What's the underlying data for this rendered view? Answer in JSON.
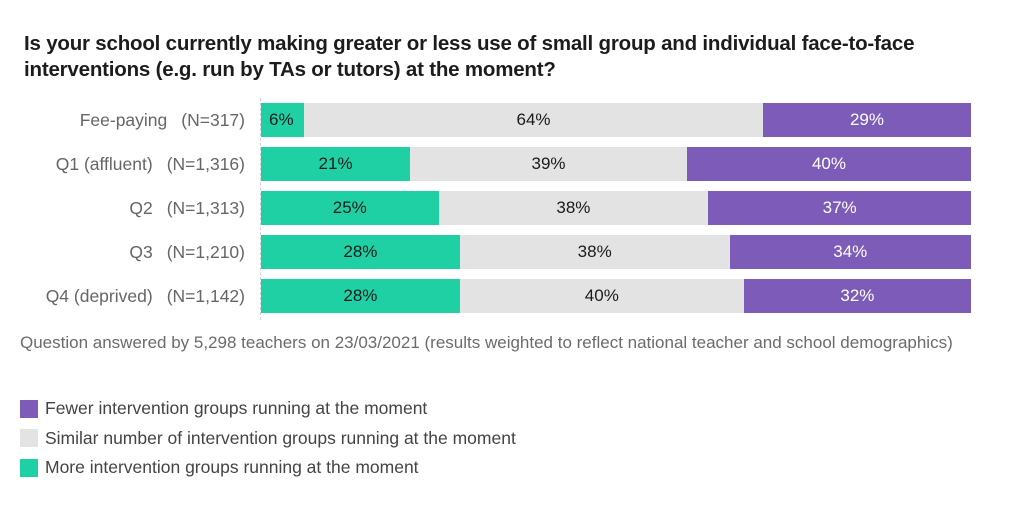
{
  "chart_data": {
    "type": "bar",
    "orientation": "horizontal",
    "stacked": true,
    "title": "Is your school currently making greater or less use of small group and individual face-to-face interventions (e.g. run by TAs or tutors) at the moment?",
    "categories": [
      "Fee-paying",
      "Q1 (affluent)",
      "Q2",
      "Q3",
      "Q4 (deprived)"
    ],
    "sample_sizes": [
      "(N=317)",
      "(N=1,316)",
      "(N=1,313)",
      "(N=1,210)",
      "(N=1,142)"
    ],
    "series": [
      {
        "name": "More intervention groups running at the moment",
        "key": "more",
        "color": "#20d0a5",
        "values": [
          6,
          21,
          25,
          28,
          28
        ]
      },
      {
        "name": "Similar number of intervention groups running at the moment",
        "key": "similar",
        "color": "#e3e3e3",
        "values": [
          64,
          39,
          38,
          38,
          40
        ]
      },
      {
        "name": "Fewer intervention groups running at the moment",
        "key": "fewer",
        "color": "#7c5cb8",
        "values": [
          29,
          40,
          37,
          34,
          32
        ]
      }
    ],
    "value_format": "percent",
    "xlim": [
      0,
      100
    ],
    "xlabel": "",
    "ylabel": "",
    "grid": false,
    "legend_position": "bottom-left",
    "legend_order": [
      "fewer",
      "similar",
      "more"
    ]
  },
  "note": "Question answered by 5,298 teachers on 23/03/2021 (results weighted to reflect national teacher and school demographics)"
}
